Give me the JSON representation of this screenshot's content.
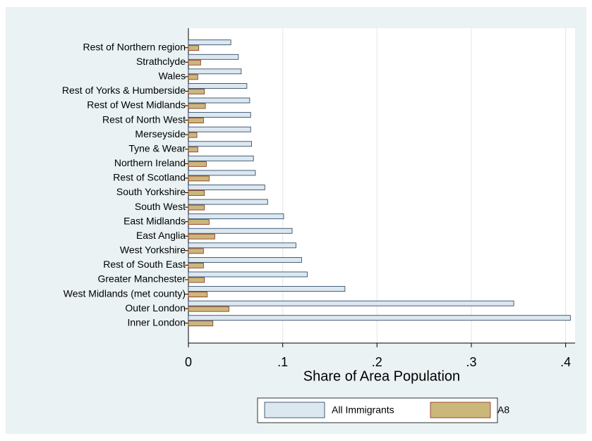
{
  "chart_data": {
    "type": "hbar",
    "x_label": "Share of Area Population",
    "categories": [
      "Rest of Northern region",
      "Strathclyde",
      "Wales",
      "Rest of Yorks & Humberside",
      "Rest of West Midlands",
      "Rest of North West",
      "Merseyside",
      "Tyne & Wear",
      "Northern Ireland",
      "Rest of Scotland",
      "South Yorkshire",
      "South West",
      "East Midlands",
      "East Anglia",
      "West Yorkshire",
      "Rest of South East",
      "Greater Manchester",
      "West Midlands (met county)",
      "Outer London",
      "Inner London"
    ],
    "series": [
      {
        "name": "All Immigrants",
        "color": "#dce8f0",
        "values": [
          0.045,
          0.053,
          0.056,
          0.062,
          0.065,
          0.066,
          0.066,
          0.067,
          0.069,
          0.071,
          0.081,
          0.084,
          0.101,
          0.11,
          0.114,
          0.12,
          0.126,
          0.166,
          0.345,
          0.405
        ]
      },
      {
        "name": "A8",
        "color": "#c9b87a",
        "values": [
          0.011,
          0.013,
          0.01,
          0.017,
          0.018,
          0.016,
          0.009,
          0.01,
          0.019,
          0.022,
          0.017,
          0.017,
          0.022,
          0.028,
          0.016,
          0.016,
          0.017,
          0.02,
          0.043,
          0.026
        ]
      }
    ],
    "xlim": [
      0,
      0.41
    ],
    "xticks": [
      0,
      {
        "value": 0.1,
        "label": ".1"
      },
      {
        "value": 0.2,
        "label": ".2"
      },
      {
        "value": 0.3,
        "label": ".3"
      },
      {
        "value": 0.4,
        "label": ".4"
      }
    ],
    "grid": true
  }
}
